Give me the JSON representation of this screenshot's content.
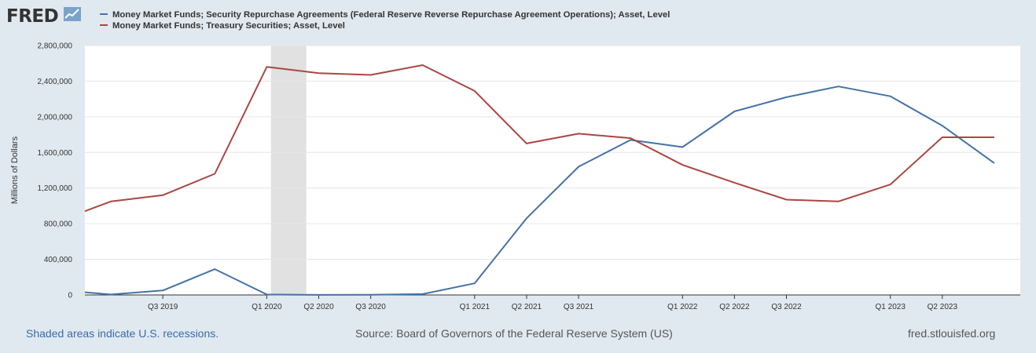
{
  "brand": {
    "logo_text": "FRED"
  },
  "legend": [
    {
      "label": "Money Market Funds; Security Repurchase Agreements (Federal Reserve Reverse Repurchase Agreement Operations); Asset, Level",
      "color": "#4572a7"
    },
    {
      "label": "Money Market Funds; Treasury Securities; Asset, Level",
      "color": "#aa4643"
    }
  ],
  "footer": {
    "recession_note": "Shaded areas indicate U.S. recessions.",
    "source": "Source: Board of Governors of the Federal Reserve System (US)",
    "site": "fred.stlouisfed.org"
  },
  "chart_data": {
    "type": "line",
    "ylabel": "Millions of Dollars",
    "ylim": [
      0,
      2800000
    ],
    "yticks": [
      0,
      400000,
      800000,
      1200000,
      1600000,
      2000000,
      2400000,
      2800000
    ],
    "ytick_labels": [
      "0",
      "400,000",
      "800,000",
      "1,200,000",
      "1,600,000",
      "2,000,000",
      "2,400,000",
      "2,800,000"
    ],
    "xlim": [
      2019.125,
      2023.625
    ],
    "xticks": [
      {
        "label": "Q3 2019",
        "x": 2019.5
      },
      {
        "label": "Q1 2020",
        "x": 2020.0
      },
      {
        "label": "Q2 2020",
        "x": 2020.25
      },
      {
        "label": "Q3 2020",
        "x": 2020.5
      },
      {
        "label": "Q1 2021",
        "x": 2021.0
      },
      {
        "label": "Q2 2021",
        "x": 2021.25
      },
      {
        "label": "Q3 2021",
        "x": 2021.5
      },
      {
        "label": "Q1 2022",
        "x": 2022.0
      },
      {
        "label": "Q2 2022",
        "x": 2022.25
      },
      {
        "label": "Q3 2022",
        "x": 2022.5
      },
      {
        "label": "Q1 2023",
        "x": 2023.0
      },
      {
        "label": "Q2 2023",
        "x": 2023.25
      }
    ],
    "recessions": [
      {
        "start": 2020.02,
        "end": 2020.19
      }
    ],
    "series": [
      {
        "name": "Money Market Funds; Security Repurchase Agreements (Federal Reserve Reverse Repurchase Agreement Operations); Asset, Level",
        "color": "#4572a7",
        "x": [
          2019.125,
          2019.25,
          2019.5,
          2019.75,
          2020.0,
          2020.25,
          2020.5,
          2020.75,
          2021.0,
          2021.25,
          2021.5,
          2021.75,
          2022.0,
          2022.25,
          2022.5,
          2022.75,
          2023.0,
          2023.25,
          2023.5
        ],
        "values": [
          30000,
          5000,
          50000,
          290000,
          5000,
          1000,
          2000,
          10000,
          130000,
          860000,
          1440000,
          1740000,
          1660000,
          2060000,
          2220000,
          2340000,
          2230000,
          1900000,
          1480000
        ]
      },
      {
        "name": "Money Market Funds; Treasury Securities; Asset, Level",
        "color": "#aa4643",
        "x": [
          2019.125,
          2019.25,
          2019.5,
          2019.75,
          2020.0,
          2020.25,
          2020.5,
          2020.75,
          2021.0,
          2021.25,
          2021.5,
          2021.75,
          2022.0,
          2022.25,
          2022.5,
          2022.75,
          2023.0,
          2023.25,
          2023.5
        ],
        "values": [
          940000,
          1050000,
          1120000,
          1360000,
          2560000,
          2490000,
          2470000,
          2580000,
          2290000,
          1700000,
          1810000,
          1760000,
          1460000,
          1260000,
          1070000,
          1050000,
          1240000,
          1770000,
          1770000
        ]
      }
    ]
  }
}
